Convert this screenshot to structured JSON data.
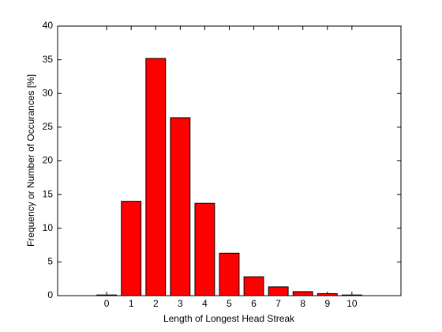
{
  "chart_data": {
    "type": "bar",
    "x_label": "Length of Longest Head Streak",
    "y_label": "Frequency or Number of Occurances [%]",
    "x": [
      0,
      1,
      2,
      3,
      4,
      5,
      6,
      7,
      8,
      9,
      10
    ],
    "values": [
      0.1,
      14,
      35.2,
      26.4,
      13.7,
      6.3,
      2.8,
      1.3,
      0.6,
      0.3,
      0.1
    ],
    "color": "#ff0000",
    "xlim": [
      -2,
      12
    ],
    "xticks": [
      0,
      1,
      2,
      3,
      4,
      5,
      6,
      7,
      8,
      9,
      10
    ],
    "ylim": [
      0,
      40
    ],
    "yticks": [
      0,
      5,
      10,
      15,
      20,
      25,
      30,
      35,
      40
    ]
  }
}
